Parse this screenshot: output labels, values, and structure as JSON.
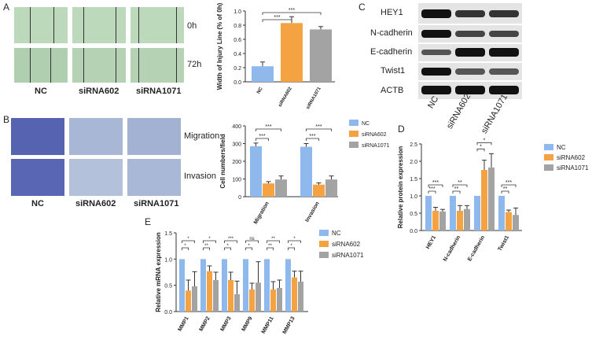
{
  "panels": {
    "A": "A",
    "B": "B",
    "C": "C",
    "D": "D",
    "E": "E"
  },
  "colors": {
    "nc": "#8fb8ec",
    "si602": "#f5a342",
    "si1071": "#a3a3a3",
    "wound": "#b9d6b9",
    "stain": "#4a5aa8"
  },
  "panelA": {
    "time_labels": [
      "0h",
      "72h"
    ],
    "group_labels": [
      "NC",
      "siRNA602",
      "siRNA1071"
    ]
  },
  "panelB": {
    "row_labels": [
      "Migration",
      "Invasion"
    ],
    "group_labels": [
      "NC",
      "siRNA602",
      "siRNA1071"
    ]
  },
  "panelC": {
    "proteins": [
      "HEY1",
      "N-cadherin",
      "E-cadherin",
      "Twist1",
      "ACTB"
    ],
    "lanes": [
      "NC",
      "siRNA602",
      "siRNA1071"
    ]
  },
  "chart_data": [
    {
      "id": "A",
      "type": "bar",
      "ylabel": "Width of Injury Line (% of 0h)",
      "categories": [
        "NC",
        "siRNA602",
        "siRNA1071"
      ],
      "values": [
        0.22,
        0.83,
        0.74
      ],
      "errors": [
        0.06,
        0.09,
        0.04
      ],
      "ylim": [
        0,
        1.0
      ],
      "yticks": [
        "0.0",
        "0.2",
        "0.4",
        "0.6",
        "0.8",
        "1.0"
      ],
      "sig": [
        "***",
        "***"
      ]
    },
    {
      "id": "B",
      "type": "bar",
      "ylabel": "Cell numbers/field",
      "categories": [
        "Migration",
        "Invasion"
      ],
      "series": [
        {
          "name": "NC",
          "values": [
            285,
            282
          ],
          "errors": [
            18,
            18
          ]
        },
        {
          "name": "siRNA602",
          "values": [
            75,
            68
          ],
          "errors": [
            10,
            10
          ]
        },
        {
          "name": "siRNA1071",
          "values": [
            97,
            97
          ],
          "errors": [
            20,
            20
          ]
        }
      ],
      "ylim": [
        0,
        400
      ],
      "yticks": [
        "0",
        "100",
        "200",
        "300",
        "400"
      ],
      "sig": [
        "***",
        "***",
        "***",
        "***"
      ]
    },
    {
      "id": "D",
      "type": "bar",
      "ylabel": "Relative  protein expression",
      "categories": [
        "HEY1",
        "N-cadherin",
        "E-cadherin",
        "Twist1"
      ],
      "series": [
        {
          "name": "NC",
          "values": [
            1.0,
            1.0,
            1.0,
            1.0
          ],
          "errors": [
            0,
            0,
            0,
            0
          ]
        },
        {
          "name": "siRNA602",
          "values": [
            0.57,
            0.57,
            1.75,
            0.53
          ],
          "errors": [
            0.1,
            0.15,
            0.28,
            0.06
          ]
        },
        {
          "name": "siRNA1071",
          "values": [
            0.55,
            0.62,
            1.82,
            0.45
          ],
          "errors": [
            0.06,
            0.1,
            0.4,
            0.2
          ]
        }
      ],
      "ylim": [
        0,
        2.5
      ],
      "yticks": [
        "0.0",
        "0.5",
        "1.0",
        "1.5",
        "2.0",
        "2.5"
      ],
      "sig": {
        "HEY1": [
          "***",
          "***"
        ],
        "N-cadherin": [
          "**",
          "**"
        ],
        "E-cadherin": [
          "*",
          "*"
        ],
        "Twist1": [
          "***",
          "**"
        ]
      }
    },
    {
      "id": "E",
      "type": "bar",
      "ylabel": "Relative  mRNA expression",
      "categories": [
        "MMP1",
        "MMP2",
        "MMP3",
        "MMP9",
        "MMP11",
        "MMP13"
      ],
      "series": [
        {
          "name": "NC",
          "values": [
            1,
            1,
            1,
            1,
            1,
            1
          ],
          "errors": [
            0,
            0,
            0,
            0,
            0,
            0
          ]
        },
        {
          "name": "siRNA602",
          "values": [
            0.4,
            0.77,
            0.6,
            0.42,
            0.42,
            0.65
          ],
          "errors": [
            0.2,
            0.1,
            0.15,
            0.12,
            0.15,
            0.12
          ]
        },
        {
          "name": "siRNA1071",
          "values": [
            0.48,
            0.6,
            0.33,
            0.55,
            0.45,
            0.57
          ],
          "errors": [
            0.28,
            0.15,
            0.25,
            0.4,
            0.15,
            0.2
          ]
        }
      ],
      "ylim": [
        0,
        1.5
      ],
      "yticks": [
        "0.0",
        "0.5",
        "1.0",
        "1.5"
      ],
      "sig": {
        "MMP1": [
          "*",
          "*"
        ],
        "MMP2": [
          "*",
          "**"
        ],
        "MMP3": [
          "***",
          "*"
        ],
        "MMP9": [
          "ns",
          "*"
        ],
        "MMP11": [
          "**",
          "**"
        ],
        "MMP13": [
          "*",
          "*"
        ]
      }
    }
  ]
}
